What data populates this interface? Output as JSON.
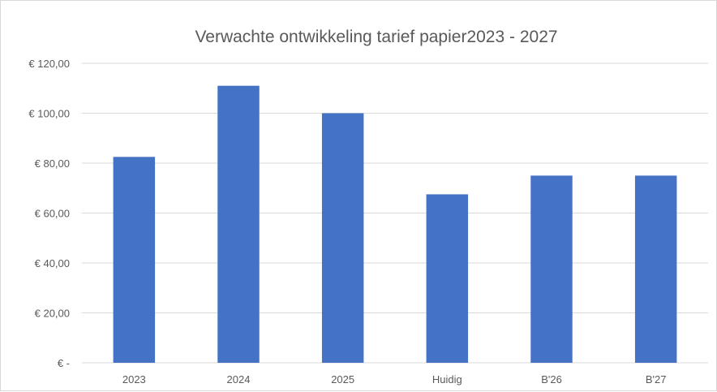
{
  "chart_data": {
    "type": "bar",
    "title": "Verwachte ontwikkeling tarief papier2023 - 2027",
    "xlabel": "",
    "ylabel": "",
    "categories": [
      "2023",
      "2024",
      "2025",
      "Huidig",
      "B'26",
      "B'27"
    ],
    "values": [
      82.5,
      111,
      100,
      67.5,
      75,
      75
    ],
    "ylim": [
      0,
      120
    ],
    "yticks": [
      0,
      20,
      40,
      60,
      80,
      100,
      120
    ],
    "ytick_labels": [
      "€ -",
      "€ 20,00",
      "€ 40,00",
      "€ 60,00",
      "€ 80,00",
      "€ 100,00",
      "€ 120,00"
    ],
    "grid": true,
    "legend": "none",
    "colors": {
      "bar": "#4472c4",
      "grid": "#d9d9d9",
      "text": "#595959"
    }
  }
}
